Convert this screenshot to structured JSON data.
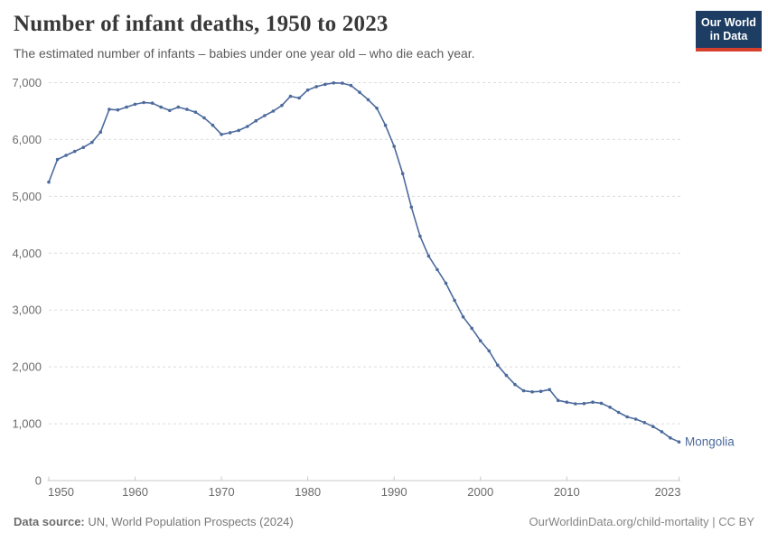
{
  "header": {
    "title": "Number of infant deaths, 1950 to 2023",
    "subtitle": "The estimated number of infants – babies under one year old – who die each year.",
    "logo": {
      "line1": "Our World",
      "line2": "in Data"
    }
  },
  "chart_data": {
    "type": "line",
    "title": "Number of infant deaths, 1950 to 2023",
    "entity_label": "Mongolia",
    "line_color": "#4c6a9c",
    "grid": "horizontal dashed",
    "legend_position": "end-of-line label",
    "xlim": [
      1950,
      2023
    ],
    "ylim": [
      0,
      7000
    ],
    "xticks": [
      1950,
      1960,
      1970,
      1980,
      1990,
      2000,
      2010,
      2023
    ],
    "yticks": [
      0,
      1000,
      2000,
      3000,
      4000,
      5000,
      6000,
      7000
    ],
    "x": [
      1950,
      1951,
      1952,
      1953,
      1954,
      1955,
      1956,
      1957,
      1958,
      1959,
      1960,
      1961,
      1962,
      1963,
      1964,
      1965,
      1966,
      1967,
      1968,
      1969,
      1970,
      1971,
      1972,
      1973,
      1974,
      1975,
      1976,
      1977,
      1978,
      1979,
      1980,
      1981,
      1982,
      1983,
      1984,
      1985,
      1986,
      1987,
      1988,
      1989,
      1990,
      1991,
      1992,
      1993,
      1994,
      1995,
      1996,
      1997,
      1998,
      1999,
      2000,
      2001,
      2002,
      2003,
      2004,
      2005,
      2006,
      2007,
      2008,
      2009,
      2010,
      2011,
      2012,
      2013,
      2014,
      2015,
      2016,
      2017,
      2018,
      2019,
      2020,
      2021,
      2022,
      2023
    ],
    "series": [
      {
        "name": "Mongolia",
        "values": [
          5250,
          5650,
          5720,
          5790,
          5860,
          5950,
          6130,
          6530,
          6520,
          6570,
          6620,
          6650,
          6640,
          6570,
          6510,
          6570,
          6530,
          6480,
          6380,
          6250,
          6090,
          6120,
          6160,
          6230,
          6330,
          6420,
          6500,
          6600,
          6760,
          6730,
          6870,
          6930,
          6970,
          6995,
          6990,
          6950,
          6830,
          6700,
          6550,
          6250,
          5880,
          5400,
          4810,
          4300,
          3950,
          3710,
          3470,
          3170,
          2880,
          2680,
          2460,
          2280,
          2030,
          1850,
          1690,
          1580,
          1560,
          1570,
          1600,
          1410,
          1380,
          1350,
          1355,
          1380,
          1360,
          1290,
          1200,
          1120,
          1080,
          1020,
          950,
          860,
          750,
          680
        ]
      }
    ]
  },
  "footer": {
    "source_label": "Data source:",
    "source_text": " UN, World Population Prospects (2024)",
    "credit": "OurWorldinData.org/child-mortality | CC BY"
  }
}
